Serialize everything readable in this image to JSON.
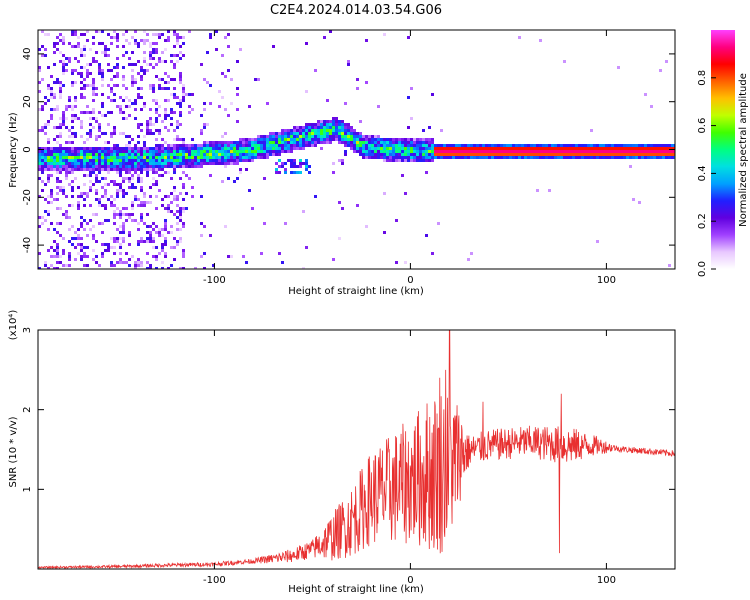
{
  "title": "C2E4.2024.014.03.54.G06",
  "chart_data": [
    {
      "type": "heatmap",
      "xlabel": "Height of straight line (km)",
      "ylabel": "Frequency (Hz)",
      "xlim": [
        -190,
        135
      ],
      "ylim": [
        -50,
        50
      ],
      "xticks": [
        -100,
        0,
        100
      ],
      "yticks": [
        -40,
        -20,
        0,
        20,
        40
      ],
      "grid": false,
      "colorbar": {
        "label": "Normalized spectral amplitude",
        "range": [
          0,
          1
        ],
        "ticks": [
          0.0,
          0.2,
          0.4,
          0.6,
          0.8
        ],
        "colormap": [
          "#ffffff",
          "#e8c8ff",
          "#a040ff",
          "#6000e0",
          "#2020ff",
          "#00a0ff",
          "#00e0e0",
          "#00ff80",
          "#40ff00",
          "#c0ff00",
          "#ffc000",
          "#ff6000",
          "#ff0000",
          "#ff0080",
          "#ff40ff"
        ]
      },
      "ridge": [
        {
          "x": -175,
          "f": -3
        },
        {
          "x": -150,
          "f": -3
        },
        {
          "x": -130,
          "f": -3
        },
        {
          "x": -115,
          "f": -2
        },
        {
          "x": -100,
          "f": -1
        },
        {
          "x": -85,
          "f": 0
        },
        {
          "x": -75,
          "f": 2
        },
        {
          "x": -65,
          "f": 4
        },
        {
          "x": -55,
          "f": 6
        },
        {
          "x": -45,
          "f": 8
        },
        {
          "x": -38,
          "f": 9
        },
        {
          "x": -32,
          "f": 6
        },
        {
          "x": -25,
          "f": 2
        },
        {
          "x": -15,
          "f": 1
        },
        {
          "x": 0,
          "f": 0
        },
        {
          "x": 12,
          "f": 0
        },
        {
          "x": 135,
          "f": 0
        }
      ],
      "strong_line": {
        "x_start": 12,
        "x_end": 135,
        "f": 0,
        "amplitude": 0.95
      }
    },
    {
      "type": "line",
      "xlabel": "Height of straight line (km)",
      "ylabel": "SNR (10 * v/v)",
      "y_multiplier": "(x10⁴)",
      "xlim": [
        -190,
        135
      ],
      "ylim": [
        0,
        3
      ],
      "xticks": [
        -100,
        0,
        100
      ],
      "yticks": [
        1,
        2,
        3
      ],
      "grid": false,
      "series": [
        {
          "color": "#e83030",
          "baseline": [
            {
              "x": -190,
              "y": 0.02
            },
            {
              "x": -150,
              "y": 0.03
            },
            {
              "x": -120,
              "y": 0.05
            },
            {
              "x": -100,
              "y": 0.06
            },
            {
              "x": -90,
              "y": 0.08
            },
            {
              "x": -80,
              "y": 0.1
            },
            {
              "x": -70,
              "y": 0.13
            },
            {
              "x": -60,
              "y": 0.17
            },
            {
              "x": -50,
              "y": 0.25
            },
            {
              "x": -40,
              "y": 0.4
            },
            {
              "x": -35,
              "y": 0.5
            },
            {
              "x": -30,
              "y": 0.6
            },
            {
              "x": -25,
              "y": 0.75
            },
            {
              "x": -20,
              "y": 0.9
            },
            {
              "x": -10,
              "y": 1.0
            },
            {
              "x": 0,
              "y": 1.1
            },
            {
              "x": 10,
              "y": 1.2
            },
            {
              "x": 20,
              "y": 1.3
            },
            {
              "x": 25,
              "y": 1.45
            },
            {
              "x": 40,
              "y": 1.55
            },
            {
              "x": 60,
              "y": 1.6
            },
            {
              "x": 80,
              "y": 1.55
            },
            {
              "x": 95,
              "y": 1.55
            },
            {
              "x": 110,
              "y": 1.5
            },
            {
              "x": 135,
              "y": 1.45
            }
          ],
          "noise": [
            {
              "x": -190,
              "a": 0.01
            },
            {
              "x": -80,
              "a": 0.03
            },
            {
              "x": -50,
              "a": 0.12
            },
            {
              "x": -40,
              "a": 0.3
            },
            {
              "x": -20,
              "a": 0.6
            },
            {
              "x": 0,
              "a": 0.8
            },
            {
              "x": 15,
              "a": 1.1
            },
            {
              "x": 22,
              "a": 0.9
            },
            {
              "x": 30,
              "a": 0.2
            },
            {
              "x": 60,
              "a": 0.2
            },
            {
              "x": 80,
              "a": 0.25
            },
            {
              "x": 95,
              "a": 0.12
            },
            {
              "x": 105,
              "a": 0.04
            },
            {
              "x": 135,
              "a": 0.04
            }
          ],
          "peaks": [
            {
              "x": 20,
              "y": 3.0
            },
            {
              "x": 18,
              "y": 2.5
            },
            {
              "x": 15,
              "y": 2.4
            },
            {
              "x": 37,
              "y": 2.1
            },
            {
              "x": 77,
              "y": 2.2
            },
            {
              "x": 76,
              "y": 0.2
            }
          ]
        }
      ]
    }
  ]
}
